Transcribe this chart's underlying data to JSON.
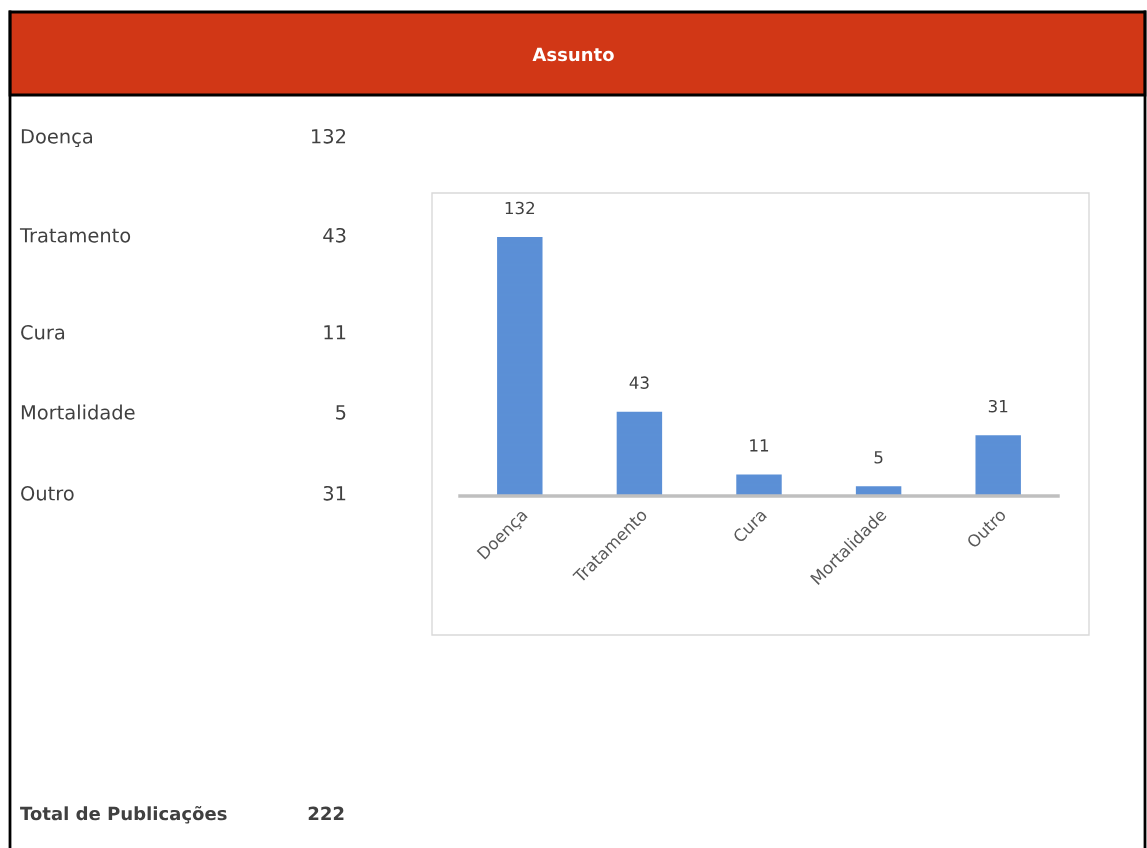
{
  "chart_data": [
    {
      "type": "other",
      "title": "Assunto",
      "categories": [
        "Doença",
        "Tratamento",
        "Cura",
        "Mortalidade",
        "Outro"
      ],
      "value_labels": [
        "132",
        "43",
        "11",
        "5",
        "31"
      ],
      "annotations": [
        "Total de Publicações",
        "222"
      ]
    },
    {
      "type": "bar",
      "categories": [
        "Doença",
        "Tratamento",
        "Cura",
        "Mortalidade",
        "Outro"
      ],
      "values": [
        132,
        43,
        11,
        5,
        31
      ],
      "color": "#5b8fd6",
      "data_labels": true,
      "grid": false,
      "legend": false
    }
  ]
}
